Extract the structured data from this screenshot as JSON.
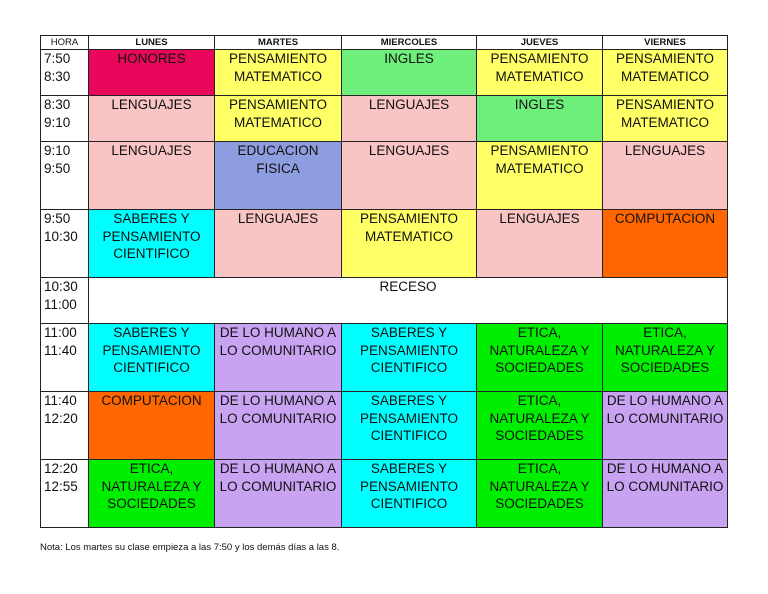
{
  "header": [
    "HORA",
    "LUNES",
    "MARTES",
    "MIERCOLES",
    "JUEVES",
    "VIERNES"
  ],
  "colors": {
    "pink": "#E8075A",
    "yellow": "#FFFF66",
    "green_light": "#6EEE7A",
    "salmon": "#F8C4C4",
    "blue": "#8E9DE0",
    "cyan": "#00FFFF",
    "orange": "#FF6600",
    "purple": "#C8A3F2",
    "green": "#00EE00",
    "white": "#FFFFFF"
  },
  "rows": [
    {
      "time": [
        "7:50",
        "8:30"
      ],
      "height": 46,
      "cells": [
        {
          "text": "HONORES",
          "color": "pink"
        },
        {
          "text": "PENSAMIENTO MATEMATICO",
          "color": "yellow"
        },
        {
          "text": "INGLES",
          "color": "green_light"
        },
        {
          "text": "PENSAMIENTO MATEMATICO",
          "color": "yellow"
        },
        {
          "text": "PENSAMIENTO MATEMATICO",
          "color": "yellow"
        }
      ]
    },
    {
      "time": [
        "8:30",
        "9:10"
      ],
      "height": 46,
      "cells": [
        {
          "text": "LENGUAJES",
          "color": "salmon"
        },
        {
          "text": "PENSAMIENTO MATEMATICO",
          "color": "yellow"
        },
        {
          "text": "LENGUAJES",
          "color": "salmon"
        },
        {
          "text": "INGLES",
          "color": "green_light"
        },
        {
          "text": "PENSAMIENTO MATEMATICO",
          "color": "yellow"
        }
      ]
    },
    {
      "time": [
        "9:10",
        "9:50"
      ],
      "height": 68,
      "cells": [
        {
          "text": "LENGUAJES",
          "color": "salmon"
        },
        {
          "text": "EDUCACION FISICA",
          "color": "blue"
        },
        {
          "text": "LENGUAJES",
          "color": "salmon"
        },
        {
          "text": "PENSAMIENTO MATEMATICO",
          "color": "yellow"
        },
        {
          "text": "LENGUAJES",
          "color": "salmon"
        }
      ]
    },
    {
      "time": [
        "9:50",
        "10:30"
      ],
      "height": 68,
      "cells": [
        {
          "text": "SABERES Y PENSAMIENTO CIENTIFICO",
          "color": "cyan"
        },
        {
          "text": "LENGUAJES",
          "color": "salmon"
        },
        {
          "text": "PENSAMIENTO MATEMATICO",
          "color": "yellow"
        },
        {
          "text": "LENGUAJES",
          "color": "salmon"
        },
        {
          "text": "COMPUTACION",
          "color": "orange"
        }
      ]
    },
    {
      "time": [
        "10:30",
        "11:00"
      ],
      "height": 46,
      "recess": "RECESO"
    },
    {
      "time": [
        "11:00",
        "11:40"
      ],
      "height": 68,
      "cells": [
        {
          "text": "SABERES Y PENSAMIENTO CIENTIFICO",
          "color": "cyan"
        },
        {
          "text": "DE LO HUMANO A LO COMUNITARIO",
          "color": "purple"
        },
        {
          "text": "SABERES Y PENSAMIENTO CIENTIFICO",
          "color": "cyan"
        },
        {
          "text": "ETICA, NATURALEZA Y SOCIEDADES",
          "color": "green"
        },
        {
          "text": "ETICA, NATURALEZA Y SOCIEDADES",
          "color": "green"
        }
      ]
    },
    {
      "time": [
        "11:40",
        "12:20"
      ],
      "height": 68,
      "cells": [
        {
          "text": "COMPUTACION",
          "color": "orange"
        },
        {
          "text": "DE LO HUMANO A LO COMUNITARIO",
          "color": "purple"
        },
        {
          "text": "SABERES Y PENSAMIENTO CIENTIFICO",
          "color": "cyan"
        },
        {
          "text": "ETICA, NATURALEZA Y SOCIEDADES",
          "color": "green"
        },
        {
          "text": "DE LO HUMANO A LO COMUNITARIO",
          "color": "purple"
        }
      ]
    },
    {
      "time": [
        "12:20",
        "12:55"
      ],
      "height": 68,
      "cells": [
        {
          "text": "ETICA, NATURALEZA Y SOCIEDADES",
          "color": "green"
        },
        {
          "text": "DE LO HUMANO A LO COMUNITARIO",
          "color": "purple"
        },
        {
          "text": "SABERES Y PENSAMIENTO CIENTIFICO",
          "color": "cyan"
        },
        {
          "text": "ETICA, NATURALEZA Y SOCIEDADES",
          "color": "green"
        },
        {
          "text": "DE LO HUMANO A LO COMUNITARIO",
          "color": "purple"
        }
      ]
    }
  ],
  "note": "Nota: Los martes su clase empieza a las 7:50 y los demás días a las 8."
}
